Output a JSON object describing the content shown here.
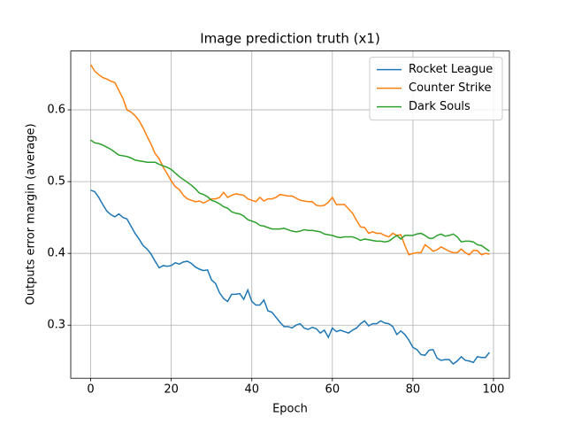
{
  "chart_data": {
    "type": "line",
    "title": "Image prediction truth (x1)",
    "x_label": "Epoch",
    "y_label": "Outputs error margin (average)",
    "x": [
      0,
      1,
      2,
      3,
      4,
      5,
      6,
      7,
      8,
      9,
      10,
      11,
      12,
      13,
      14,
      15,
      16,
      17,
      18,
      19,
      20,
      21,
      22,
      23,
      24,
      25,
      26,
      27,
      28,
      29,
      30,
      31,
      32,
      33,
      34,
      35,
      36,
      37,
      38,
      39,
      40,
      41,
      42,
      43,
      44,
      45,
      46,
      47,
      48,
      49,
      50,
      51,
      52,
      53,
      54,
      55,
      56,
      57,
      58,
      59,
      60,
      61,
      62,
      63,
      64,
      65,
      66,
      67,
      68,
      69,
      70,
      71,
      72,
      73,
      74,
      75,
      76,
      77,
      78,
      79,
      80,
      81,
      82,
      83,
      84,
      85,
      86,
      87,
      88,
      89,
      90,
      91,
      92,
      93,
      94,
      95,
      96,
      97,
      98,
      99
    ],
    "series": [
      {
        "name": "Rocket League",
        "color": "#1f77b4",
        "values": [
          0.488,
          0.486,
          0.478,
          0.468,
          0.459,
          0.454,
          0.451,
          0.455,
          0.45,
          0.448,
          0.438,
          0.428,
          0.42,
          0.411,
          0.406,
          0.399,
          0.389,
          0.38,
          0.383,
          0.382,
          0.383,
          0.387,
          0.385,
          0.388,
          0.389,
          0.386,
          0.381,
          0.378,
          0.376,
          0.377,
          0.363,
          0.358,
          0.345,
          0.337,
          0.333,
          0.343,
          0.343,
          0.344,
          0.336,
          0.349,
          0.333,
          0.328,
          0.328,
          0.335,
          0.32,
          0.318,
          0.311,
          0.304,
          0.298,
          0.298,
          0.296,
          0.3,
          0.302,
          0.296,
          0.294,
          0.297,
          0.295,
          0.289,
          0.293,
          0.283,
          0.296,
          0.291,
          0.293,
          0.291,
          0.289,
          0.293,
          0.296,
          0.302,
          0.306,
          0.299,
          0.302,
          0.302,
          0.306,
          0.303,
          0.302,
          0.298,
          0.287,
          0.292,
          0.287,
          0.279,
          0.269,
          0.266,
          0.259,
          0.258,
          0.265,
          0.266,
          0.254,
          0.251,
          0.252,
          0.252,
          0.246,
          0.25,
          0.256,
          0.251,
          0.25,
          0.248,
          0.256,
          0.255,
          0.255,
          0.262
        ]
      },
      {
        "name": "Counter Strike",
        "color": "#ff7f0e",
        "values": [
          0.663,
          0.654,
          0.649,
          0.645,
          0.643,
          0.64,
          0.638,
          0.627,
          0.616,
          0.6,
          0.597,
          0.592,
          0.585,
          0.575,
          0.563,
          0.552,
          0.539,
          0.532,
          0.52,
          0.511,
          0.501,
          0.493,
          0.489,
          0.481,
          0.476,
          0.474,
          0.472,
          0.473,
          0.47,
          0.473,
          0.476,
          0.476,
          0.478,
          0.485,
          0.478,
          0.481,
          0.483,
          0.482,
          0.481,
          0.476,
          0.474,
          0.472,
          0.478,
          0.473,
          0.476,
          0.476,
          0.478,
          0.482,
          0.481,
          0.48,
          0.48,
          0.477,
          0.474,
          0.473,
          0.472,
          0.472,
          0.467,
          0.466,
          0.467,
          0.471,
          0.478,
          0.468,
          0.468,
          0.468,
          0.462,
          0.456,
          0.446,
          0.437,
          0.436,
          0.428,
          0.43,
          0.428,
          0.428,
          0.425,
          0.423,
          0.428,
          0.425,
          0.426,
          0.411,
          0.398,
          0.4,
          0.401,
          0.401,
          0.412,
          0.408,
          0.403,
          0.405,
          0.409,
          0.406,
          0.403,
          0.401,
          0.401,
          0.406,
          0.401,
          0.398,
          0.404,
          0.404,
          0.398,
          0.4,
          0.399
        ]
      },
      {
        "name": "Dark Souls",
        "color": "#2ca02c",
        "values": [
          0.558,
          0.554,
          0.553,
          0.551,
          0.548,
          0.545,
          0.541,
          0.537,
          0.536,
          0.535,
          0.533,
          0.53,
          0.529,
          0.528,
          0.527,
          0.527,
          0.527,
          0.524,
          0.522,
          0.52,
          0.517,
          0.512,
          0.507,
          0.503,
          0.499,
          0.495,
          0.49,
          0.484,
          0.482,
          0.479,
          0.474,
          0.472,
          0.469,
          0.465,
          0.463,
          0.458,
          0.456,
          0.455,
          0.452,
          0.447,
          0.445,
          0.443,
          0.439,
          0.438,
          0.436,
          0.434,
          0.434,
          0.434,
          0.435,
          0.433,
          0.431,
          0.43,
          0.431,
          0.433,
          0.432,
          0.432,
          0.431,
          0.43,
          0.427,
          0.426,
          0.425,
          0.423,
          0.422,
          0.423,
          0.423,
          0.423,
          0.421,
          0.418,
          0.42,
          0.419,
          0.418,
          0.417,
          0.417,
          0.416,
          0.417,
          0.421,
          0.425,
          0.42,
          0.425,
          0.425,
          0.425,
          0.427,
          0.428,
          0.425,
          0.421,
          0.421,
          0.425,
          0.427,
          0.424,
          0.425,
          0.427,
          0.423,
          0.416,
          0.417,
          0.417,
          0.416,
          0.412,
          0.411,
          0.407,
          0.403
        ]
      }
    ],
    "xlim": [
      -4.95,
      103.95
    ],
    "ylim": [
      0.226,
      0.682
    ],
    "xticks": [
      0,
      20,
      40,
      60,
      80,
      100
    ],
    "yticks": [
      0.3,
      0.4,
      0.5,
      0.6
    ],
    "grid": true,
    "legend": "upper right"
  }
}
